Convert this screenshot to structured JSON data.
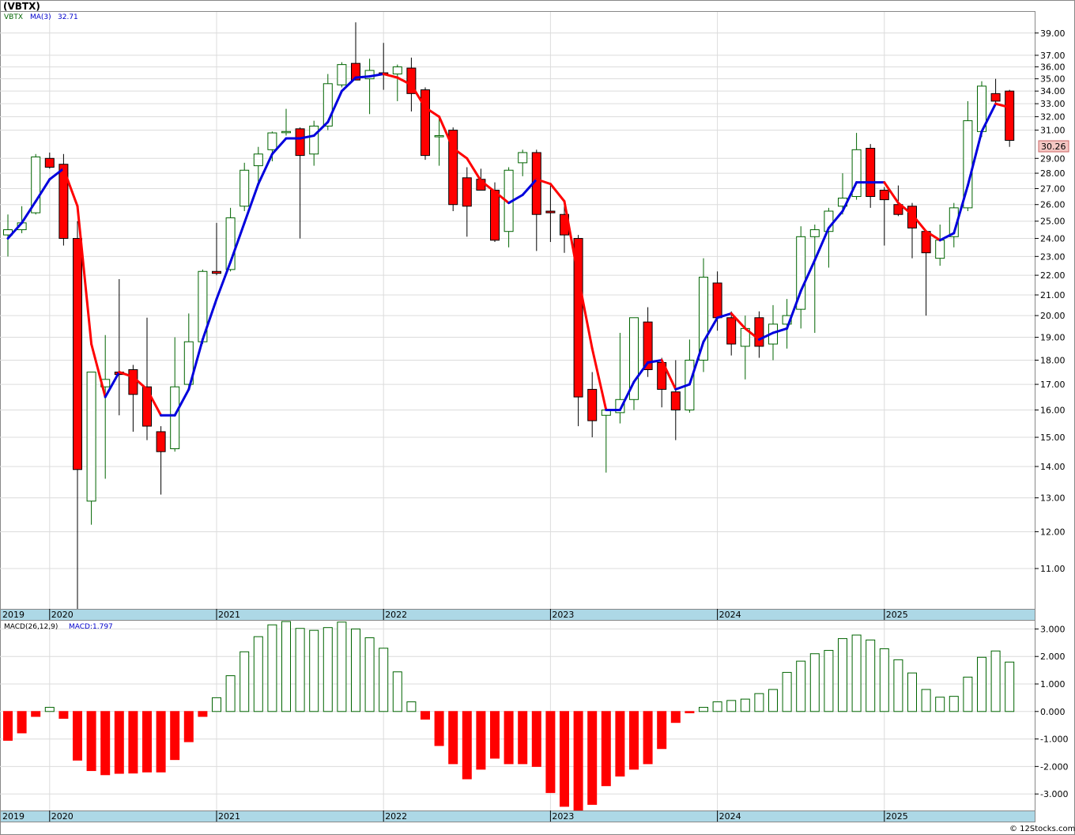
{
  "title": "(VBTX)",
  "watermark": "© 12Stocks.com",
  "last_price_label": "30.26",
  "colors": {
    "up": "#006400",
    "down": "#ff0000",
    "ma_up": "#0000dd",
    "ma_down": "#ff0000",
    "axis_band": "#add8e6",
    "grid": "#dcdcdc",
    "macd_text": "#0000cc"
  },
  "price_panel": {
    "legend_symbol": "VBTX",
    "legend_ma": "MA(3)",
    "legend_ma_value": "32.71",
    "yticks": [
      "11.00",
      "12.00",
      "13.00",
      "14.00",
      "15.00",
      "16.00",
      "17.00",
      "18.00",
      "19.00",
      "20.00",
      "21.00",
      "22.00",
      "23.00",
      "24.00",
      "25.00",
      "26.00",
      "27.00",
      "28.00",
      "29.00",
      "31.00",
      "32.00",
      "33.00",
      "34.00",
      "35.00",
      "36.00",
      "37.00",
      "39.00"
    ],
    "x_labels": [
      "2019",
      "2020",
      "2021",
      "2022",
      "2023",
      "2024",
      "2025"
    ]
  },
  "macd_panel": {
    "legend_name": "MACD(26,12,9)",
    "legend_value": "MACD:1.797",
    "yticks": [
      "3.000",
      "2.000",
      "1.000",
      "0.000",
      "-1.000",
      "-2.000",
      "-3.000"
    ],
    "x_labels": [
      "2019",
      "2020",
      "2021",
      "2022",
      "2023",
      "2024",
      "2025"
    ]
  },
  "chart_data": [
    {
      "type": "candlestick",
      "title": "(VBTX)",
      "y_scale": "log",
      "ylim": [
        10.0,
        41.0
      ],
      "series_ma_name": "MA(3)",
      "candles": [
        {
          "x": "2019-11",
          "o": 24.2,
          "h": 25.4,
          "l": 23.0,
          "c": 24.5
        },
        {
          "x": "2019-12",
          "o": 24.5,
          "h": 25.9,
          "l": 24.3,
          "c": 24.9
        },
        {
          "x": "2020-01",
          "o": 25.5,
          "h": 29.3,
          "l": 25.4,
          "c": 29.1
        },
        {
          "x": "2020-02",
          "o": 29.0,
          "h": 29.4,
          "l": 28.3,
          "c": 28.4
        },
        {
          "x": "2020-03",
          "o": 28.6,
          "h": 29.3,
          "l": 23.6,
          "c": 24.0
        },
        {
          "x": "2020-04",
          "o": 24.0,
          "h": 25.0,
          "l": 9.5,
          "c": 13.9
        },
        {
          "x": "2020-05",
          "o": 12.9,
          "h": 17.5,
          "l": 12.2,
          "c": 17.5
        },
        {
          "x": "2020-06",
          "o": 16.9,
          "h": 19.1,
          "l": 13.6,
          "c": 17.2
        },
        {
          "x": "2020-07",
          "o": 17.5,
          "h": 21.8,
          "l": 15.8,
          "c": 17.4
        },
        {
          "x": "2020-08",
          "o": 17.6,
          "h": 17.8,
          "l": 15.2,
          "c": 16.6
        },
        {
          "x": "2020-09",
          "o": 16.9,
          "h": 19.9,
          "l": 14.9,
          "c": 15.4
        },
        {
          "x": "2020-10",
          "o": 15.2,
          "h": 15.4,
          "l": 13.1,
          "c": 14.5
        },
        {
          "x": "2020-11",
          "o": 14.6,
          "h": 19.0,
          "l": 14.5,
          "c": 16.9
        },
        {
          "x": "2020-12",
          "o": 17.0,
          "h": 20.1,
          "l": 16.8,
          "c": 18.8
        },
        {
          "x": "2021-01",
          "o": 18.8,
          "h": 22.3,
          "l": 18.7,
          "c": 22.2
        },
        {
          "x": "2021-02",
          "o": 22.2,
          "h": 24.9,
          "l": 22.0,
          "c": 22.1
        },
        {
          "x": "2021-03",
          "o": 22.3,
          "h": 25.8,
          "l": 22.2,
          "c": 25.2
        },
        {
          "x": "2021-04",
          "o": 25.9,
          "h": 28.7,
          "l": 25.6,
          "c": 28.2
        },
        {
          "x": "2021-05",
          "o": 28.5,
          "h": 29.8,
          "l": 27.4,
          "c": 29.3
        },
        {
          "x": "2021-06",
          "o": 29.6,
          "h": 30.9,
          "l": 28.8,
          "c": 30.8
        },
        {
          "x": "2021-07",
          "o": 30.9,
          "h": 32.6,
          "l": 30.6,
          "c": 30.9
        },
        {
          "x": "2021-08",
          "o": 31.1,
          "h": 31.2,
          "l": 24.0,
          "c": 29.2
        },
        {
          "x": "2021-09",
          "o": 29.3,
          "h": 31.7,
          "l": 28.5,
          "c": 31.3
        },
        {
          "x": "2021-10",
          "o": 31.3,
          "h": 35.4,
          "l": 31.0,
          "c": 34.6
        },
        {
          "x": "2021-11",
          "o": 34.5,
          "h": 36.4,
          "l": 34.3,
          "c": 36.2
        },
        {
          "x": "2021-12",
          "o": 36.3,
          "h": 40.0,
          "l": 35.0,
          "c": 34.9
        },
        {
          "x": "2022-01",
          "o": 35.0,
          "h": 36.7,
          "l": 32.2,
          "c": 35.7
        },
        {
          "x": "2022-02",
          "o": 35.5,
          "h": 38.1,
          "l": 34.1,
          "c": 35.4
        },
        {
          "x": "2022-03",
          "o": 35.4,
          "h": 36.2,
          "l": 33.2,
          "c": 36.0
        },
        {
          "x": "2022-04",
          "o": 35.9,
          "h": 36.8,
          "l": 32.4,
          "c": 33.8
        },
        {
          "x": "2022-05",
          "o": 34.1,
          "h": 34.3,
          "l": 28.9,
          "c": 29.2
        },
        {
          "x": "2022-06",
          "o": 30.6,
          "h": 31.9,
          "l": 28.5,
          "c": 30.6
        },
        {
          "x": "2022-07",
          "o": 31.0,
          "h": 31.2,
          "l": 25.6,
          "c": 26.0
        },
        {
          "x": "2022-08",
          "o": 27.7,
          "h": 28.4,
          "l": 24.1,
          "c": 25.9
        },
        {
          "x": "2022-09",
          "o": 27.6,
          "h": 28.3,
          "l": 27.1,
          "c": 26.9
        },
        {
          "x": "2022-10",
          "o": 26.9,
          "h": 27.4,
          "l": 23.8,
          "c": 23.9
        },
        {
          "x": "2022-11",
          "o": 24.4,
          "h": 28.4,
          "l": 23.5,
          "c": 28.2
        },
        {
          "x": "2022-12",
          "o": 28.7,
          "h": 29.6,
          "l": 27.8,
          "c": 29.4
        },
        {
          "x": "2023-01",
          "o": 29.4,
          "h": 29.6,
          "l": 23.3,
          "c": 25.4
        },
        {
          "x": "2023-02",
          "o": 25.6,
          "h": 27.3,
          "l": 23.8,
          "c": 25.5
        },
        {
          "x": "2023-03",
          "o": 25.4,
          "h": 26.3,
          "l": 23.2,
          "c": 24.2
        },
        {
          "x": "2023-04",
          "o": 24.0,
          "h": 24.2,
          "l": 15.4,
          "c": 16.5
        },
        {
          "x": "2023-05",
          "o": 16.8,
          "h": 17.5,
          "l": 15.0,
          "c": 15.6
        },
        {
          "x": "2023-06",
          "o": 15.8,
          "h": 16.1,
          "l": 13.8,
          "c": 16.0
        },
        {
          "x": "2023-07",
          "o": 15.9,
          "h": 19.2,
          "l": 15.5,
          "c": 16.4
        },
        {
          "x": "2023-08",
          "o": 16.4,
          "h": 19.9,
          "l": 16.0,
          "c": 19.9
        },
        {
          "x": "2023-09",
          "o": 19.7,
          "h": 20.4,
          "l": 17.3,
          "c": 17.6
        },
        {
          "x": "2023-10",
          "o": 17.9,
          "h": 18.1,
          "l": 16.1,
          "c": 16.8
        },
        {
          "x": "2023-11",
          "o": 16.7,
          "h": 18.0,
          "l": 14.9,
          "c": 16.0
        },
        {
          "x": "2023-12",
          "o": 16.0,
          "h": 18.9,
          "l": 15.9,
          "c": 18.0
        },
        {
          "x": "2024-01",
          "o": 18.0,
          "h": 22.9,
          "l": 17.5,
          "c": 21.9
        },
        {
          "x": "2024-02",
          "o": 21.6,
          "h": 22.2,
          "l": 19.3,
          "c": 19.9
        },
        {
          "x": "2024-03",
          "o": 19.9,
          "h": 20.2,
          "l": 18.2,
          "c": 18.7
        },
        {
          "x": "2024-04",
          "o": 18.6,
          "h": 20.0,
          "l": 17.2,
          "c": 19.4
        },
        {
          "x": "2024-05",
          "o": 19.9,
          "h": 20.2,
          "l": 18.1,
          "c": 18.6
        },
        {
          "x": "2024-06",
          "o": 18.7,
          "h": 20.5,
          "l": 18.0,
          "c": 19.6
        },
        {
          "x": "2024-07",
          "o": 19.6,
          "h": 20.8,
          "l": 18.5,
          "c": 20.0
        },
        {
          "x": "2024-08",
          "o": 20.3,
          "h": 24.7,
          "l": 19.4,
          "c": 24.1
        },
        {
          "x": "2024-09",
          "o": 24.1,
          "h": 24.8,
          "l": 19.2,
          "c": 24.5
        },
        {
          "x": "2024-10",
          "o": 24.4,
          "h": 25.8,
          "l": 22.4,
          "c": 25.6
        },
        {
          "x": "2024-11",
          "o": 25.9,
          "h": 28.0,
          "l": 25.4,
          "c": 26.4
        },
        {
          "x": "2024-12",
          "o": 26.5,
          "h": 30.8,
          "l": 26.3,
          "c": 29.6
        },
        {
          "x": "2025-01",
          "o": 29.7,
          "h": 30.0,
          "l": 25.8,
          "c": 26.5
        },
        {
          "x": "2025-02",
          "o": 26.9,
          "h": 27.1,
          "l": 23.6,
          "c": 26.3
        },
        {
          "x": "2025-03",
          "o": 26.0,
          "h": 27.2,
          "l": 25.3,
          "c": 25.4
        },
        {
          "x": "2025-04",
          "o": 25.9,
          "h": 26.1,
          "l": 22.9,
          "c": 24.6
        },
        {
          "x": "2025-05",
          "o": 24.4,
          "h": 24.4,
          "l": 20.0,
          "c": 23.2
        },
        {
          "x": "2025-06",
          "o": 22.9,
          "h": 24.8,
          "l": 22.5,
          "c": 23.9
        },
        {
          "x": "2025-07",
          "o": 24.1,
          "h": 26.1,
          "l": 23.5,
          "c": 25.8
        },
        {
          "x": "2025-08",
          "o": 25.8,
          "h": 33.2,
          "l": 25.6,
          "c": 31.7
        },
        {
          "x": "2025-09",
          "o": 30.9,
          "h": 34.8,
          "l": 30.5,
          "c": 34.4
        },
        {
          "x": "2025-10",
          "o": 33.8,
          "h": 35.0,
          "l": 33.0,
          "c": 33.2
        },
        {
          "x": "2025-11",
          "o": 34.0,
          "h": 34.1,
          "l": 29.8,
          "c": 30.26
        }
      ],
      "ma": [
        24.0,
        24.9,
        26.2,
        27.6,
        28.3,
        25.9,
        18.7,
        16.5,
        17.5,
        17.3,
        16.8,
        15.8,
        15.8,
        16.8,
        18.9,
        20.8,
        22.7,
        24.9,
        27.3,
        29.3,
        30.4,
        30.4,
        30.6,
        31.6,
        34.0,
        35.1,
        35.2,
        35.4,
        35.1,
        34.5,
        32.7,
        32.0,
        29.7,
        29.0,
        27.5,
        26.8,
        26.1,
        26.6,
        27.6,
        27.3,
        26.2,
        21.9,
        18.5,
        16.0,
        16.0,
        17.1,
        17.9,
        18.0,
        16.8,
        17.0,
        18.8,
        19.9,
        20.1,
        19.4,
        18.9,
        19.2,
        19.4,
        21.2,
        22.8,
        24.6,
        25.6,
        27.4,
        27.4,
        27.4,
        26.1,
        25.4,
        24.4,
        23.9,
        24.3,
        27.2,
        30.9,
        33.0,
        32.71
      ],
      "x_tick_labels": [
        "2019",
        "2020",
        "2021",
        "2022",
        "2023",
        "2024",
        "2025"
      ]
    },
    {
      "type": "bar",
      "title": "MACD(26,12,9)",
      "ylim": [
        -3.6,
        3.3
      ],
      "values": [
        -1.05,
        -0.78,
        -0.18,
        0.15,
        -0.25,
        -1.77,
        -2.15,
        -2.3,
        -2.25,
        -2.24,
        -2.2,
        -2.2,
        -1.75,
        -1.1,
        -0.18,
        0.5,
        1.3,
        2.17,
        2.72,
        3.15,
        3.27,
        3.02,
        2.95,
        3.05,
        3.25,
        3.0,
        2.68,
        2.3,
        1.44,
        0.35,
        -0.28,
        -1.24,
        -1.9,
        -2.45,
        -2.1,
        -1.7,
        -1.9,
        -1.9,
        -2.0,
        -2.95,
        -3.45,
        -3.6,
        -3.38,
        -2.7,
        -2.35,
        -2.1,
        -1.9,
        -1.35,
        -0.4,
        -0.05,
        0.15,
        0.35,
        0.4,
        0.45,
        0.65,
        0.8,
        1.42,
        1.83,
        2.1,
        2.22,
        2.65,
        2.78,
        2.6,
        2.28,
        1.88,
        1.4,
        0.8,
        0.52,
        0.55,
        1.25,
        1.97,
        2.2,
        1.797
      ]
    }
  ]
}
